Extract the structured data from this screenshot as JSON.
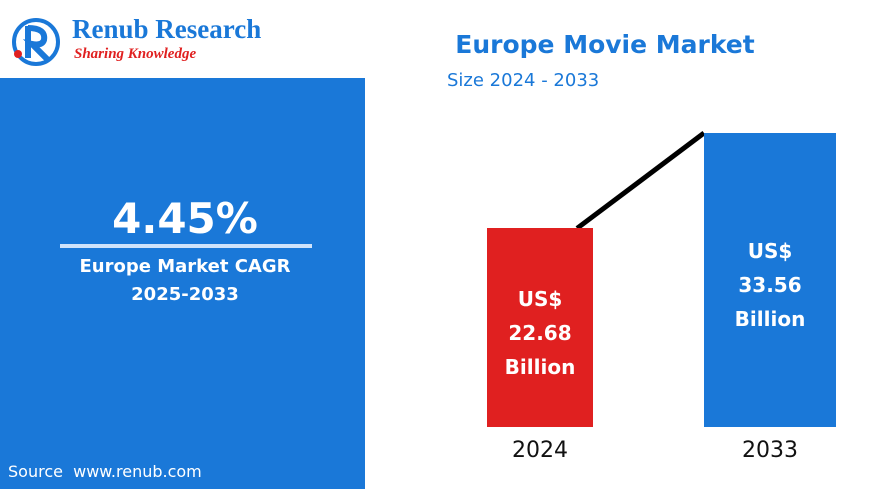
{
  "logo": {
    "name": "Renub Research",
    "tagline": "Sharing Knowledge"
  },
  "cagr": {
    "value": "4.45%",
    "label": "Europe Market CAGR",
    "period": "2025-2033"
  },
  "source": "Source  www.renub.com",
  "chart_data": {
    "type": "bar",
    "title": "Europe Movie Market",
    "subtitle": "Size 2024 - 2033",
    "categories": [
      "2024",
      "2033"
    ],
    "values": [
      22.68,
      33.56
    ],
    "value_labels": [
      "US$ 22.68 Billion",
      "US$ 33.56 Billion"
    ],
    "colors": [
      "#e02020",
      "#1a78d8"
    ],
    "grid": false
  }
}
